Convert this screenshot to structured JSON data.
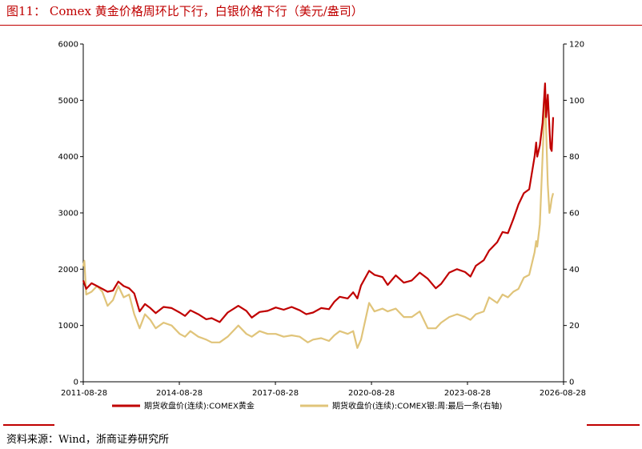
{
  "header": {
    "title": "图11： Comex 黄金价格周环比下行，白银价格下行（美元/盎司）"
  },
  "footer": {
    "source": "资料来源：Wind，浙商证券研究所"
  },
  "chart_data": {
    "type": "line",
    "title": "图11： Comex 黄金价格周环比下行，白银价格下行（美元/盎司）",
    "x_ticks": [
      "2011-08-28",
      "2014-08-28",
      "2017-08-28",
      "2020-08-28",
      "2023-08-28",
      "2026-08-28"
    ],
    "xlim": [
      "2011-08-28",
      "2026-08-28"
    ],
    "y_left": {
      "ylim": [
        0,
        6000
      ],
      "ticks": [
        0,
        1000,
        2000,
        3000,
        4000,
        5000,
        6000
      ]
    },
    "y_right": {
      "ylim": [
        0,
        120
      ],
      "ticks": [
        0,
        20,
        40,
        60,
        80,
        100,
        120
      ]
    },
    "grid": false,
    "legend_position": "bottom",
    "colors": {
      "gold": "#c00000",
      "silver": "#e0c47a",
      "accent": "#c00000"
    },
    "series": [
      {
        "name": "期货收盘价(连续):COMEX黄金",
        "axis": "left",
        "x": [
          "2011-08-28",
          "2011-10-01",
          "2011-12-01",
          "2012-02-01",
          "2012-04-01",
          "2012-06-01",
          "2012-08-01",
          "2012-10-01",
          "2012-12-01",
          "2013-02-01",
          "2013-04-01",
          "2013-06-01",
          "2013-08-01",
          "2013-10-01",
          "2013-12-01",
          "2014-03-01",
          "2014-06-01",
          "2014-09-01",
          "2014-11-01",
          "2015-01-01",
          "2015-04-01",
          "2015-07-01",
          "2015-09-01",
          "2015-12-01",
          "2016-03-01",
          "2016-07-01",
          "2016-10-01",
          "2016-12-01",
          "2017-03-01",
          "2017-06-01",
          "2017-09-01",
          "2017-12-01",
          "2018-03-01",
          "2018-06-01",
          "2018-08-15",
          "2018-11-01",
          "2019-02-01",
          "2019-05-01",
          "2019-07-01",
          "2019-09-01",
          "2019-12-01",
          "2020-02-01",
          "2020-03-20",
          "2020-05-01",
          "2020-08-01",
          "2020-10-01",
          "2021-01-01",
          "2021-03-01",
          "2021-06-01",
          "2021-09-01",
          "2021-12-01",
          "2022-03-01",
          "2022-06-01",
          "2022-09-01",
          "2022-11-01",
          "2023-02-01",
          "2023-05-01",
          "2023-08-01",
          "2023-10-01",
          "2023-12-01",
          "2024-03-01",
          "2024-05-01",
          "2024-08-01",
          "2024-10-01",
          "2024-12-01",
          "2025-02-01",
          "2025-04-01",
          "2025-06-01",
          "2025-08-01",
          "2025-10-01",
          "2025-10-20",
          "2025-11-01",
          "2025-12-01",
          "2026-01-01",
          "2026-01-29",
          "2026-02-10",
          "2026-03-01",
          "2026-03-20",
          "2026-04-01",
          "2026-04-15",
          "2026-05-01"
        ],
        "values": [
          1800,
          1650,
          1750,
          1700,
          1650,
          1600,
          1620,
          1780,
          1700,
          1660,
          1570,
          1250,
          1380,
          1310,
          1220,
          1330,
          1310,
          1230,
          1170,
          1270,
          1200,
          1110,
          1130,
          1060,
          1230,
          1350,
          1260,
          1140,
          1240,
          1260,
          1320,
          1280,
          1330,
          1270,
          1200,
          1230,
          1310,
          1290,
          1420,
          1510,
          1480,
          1590,
          1480,
          1710,
          1970,
          1900,
          1860,
          1720,
          1890,
          1760,
          1800,
          1940,
          1830,
          1660,
          1740,
          1940,
          2000,
          1950,
          1870,
          2060,
          2160,
          2330,
          2480,
          2660,
          2640,
          2890,
          3150,
          3350,
          3420,
          4000,
          4250,
          4000,
          4200,
          4600,
          5300,
          4700,
          5100,
          4500,
          4150,
          4100,
          4700
        ]
      },
      {
        "name": "期货收盘价(连续):COMEX银:周:最后一条(右轴)",
        "axis": "right",
        "x": [
          "2011-08-28",
          "2011-09-10",
          "2011-10-01",
          "2011-12-01",
          "2012-02-01",
          "2012-04-01",
          "2012-06-01",
          "2012-08-01",
          "2012-10-01",
          "2012-12-01",
          "2013-02-01",
          "2013-04-01",
          "2013-06-01",
          "2013-08-01",
          "2013-10-01",
          "2013-12-01",
          "2014-03-01",
          "2014-06-01",
          "2014-09-01",
          "2014-11-01",
          "2015-01-01",
          "2015-04-01",
          "2015-07-01",
          "2015-09-01",
          "2015-12-01",
          "2016-03-01",
          "2016-07-01",
          "2016-10-01",
          "2016-12-01",
          "2017-03-01",
          "2017-06-01",
          "2017-09-01",
          "2017-12-01",
          "2018-03-01",
          "2018-06-01",
          "2018-09-01",
          "2018-11-01",
          "2019-02-01",
          "2019-05-01",
          "2019-07-01",
          "2019-09-01",
          "2019-12-01",
          "2020-02-01",
          "2020-03-20",
          "2020-05-01",
          "2020-08-01",
          "2020-10-01",
          "2021-01-01",
          "2021-03-01",
          "2021-06-01",
          "2021-09-01",
          "2021-12-01",
          "2022-03-01",
          "2022-06-01",
          "2022-09-01",
          "2022-11-01",
          "2023-02-01",
          "2023-05-01",
          "2023-08-01",
          "2023-10-01",
          "2023-12-01",
          "2024-03-01",
          "2024-05-01",
          "2024-08-01",
          "2024-10-01",
          "2024-12-01",
          "2025-02-01",
          "2025-04-01",
          "2025-06-01",
          "2025-08-01",
          "2025-10-01",
          "2025-10-20",
          "2025-11-01",
          "2025-12-01",
          "2026-01-01",
          "2026-01-29",
          "2026-02-10",
          "2026-03-01",
          "2026-03-20",
          "2026-04-01",
          "2026-04-15",
          "2026-05-01"
        ],
        "values": [
          41,
          43,
          31,
          32,
          34,
          32,
          27,
          29,
          34,
          30,
          31,
          24,
          19,
          24,
          22,
          19,
          21,
          20,
          17,
          16,
          18,
          16,
          15,
          14,
          14,
          16,
          20,
          17,
          16,
          18,
          17,
          17,
          16,
          16.5,
          16,
          14,
          15,
          15.5,
          14.5,
          16.5,
          18,
          17,
          18,
          12,
          15,
          28,
          25,
          26,
          25,
          26,
          23,
          23,
          25,
          19,
          19,
          21,
          23,
          24,
          23,
          22,
          24,
          25,
          30,
          28,
          31,
          30,
          32,
          33,
          37,
          38,
          46,
          50,
          48,
          56,
          80,
          103,
          90,
          70,
          60,
          62,
          65,
          67
        ]
      }
    ]
  }
}
